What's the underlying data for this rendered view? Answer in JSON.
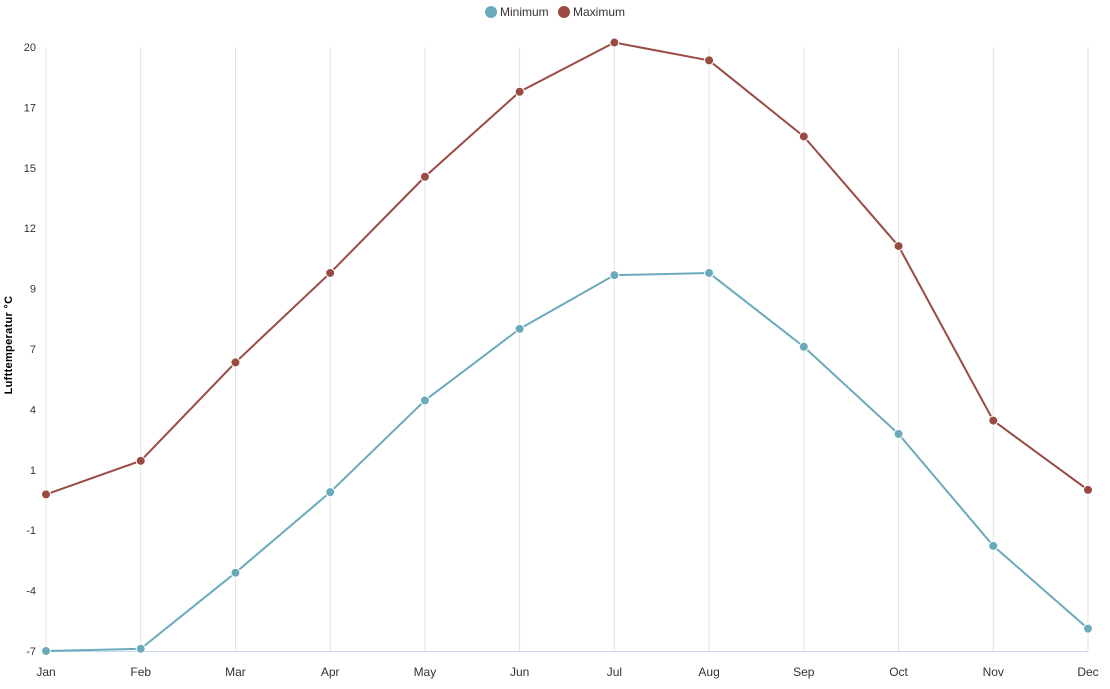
{
  "chart_data": {
    "type": "line",
    "categories": [
      "Jan",
      "Feb",
      "Mar",
      "Apr",
      "May",
      "Jun",
      "Jul",
      "Aug",
      "Sep",
      "Oct",
      "Nov",
      "Dec"
    ],
    "series": [
      {
        "name": "Minimum",
        "color": "#6aaabb",
        "values": [
          -7.0,
          -6.9,
          -3.5,
          0.1,
          4.2,
          7.4,
          9.8,
          9.9,
          6.6,
          2.7,
          -2.3,
          -6.0
        ]
      },
      {
        "name": "Maximum",
        "color": "#9a4a43",
        "values": [
          0.0,
          1.5,
          5.9,
          9.9,
          14.2,
          18.0,
          20.2,
          19.4,
          16.0,
          11.1,
          3.3,
          0.2
        ]
      }
    ],
    "xlabel": "",
    "ylabel": "Lufttemperatur °C",
    "ylim": [
      -7,
      20
    ],
    "yticks": [
      "-7",
      "-4",
      "-1",
      "1",
      "4",
      "7",
      "9",
      "12",
      "15",
      "17",
      "20"
    ],
    "legend": "top-center",
    "grid": "vertical"
  }
}
